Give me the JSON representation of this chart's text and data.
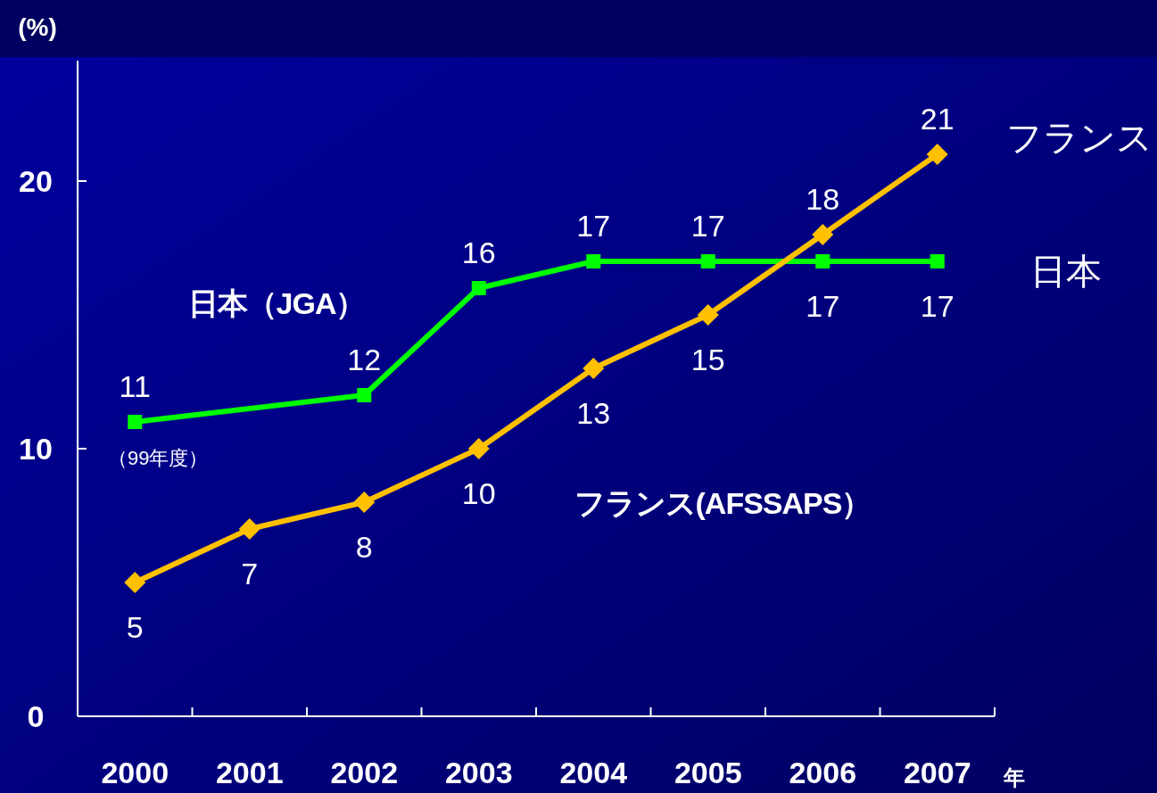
{
  "chart_data": {
    "type": "line",
    "ylabel": "(%)",
    "xlabel": "年",
    "categories": [
      "2000",
      "2001",
      "2002",
      "2003",
      "2004",
      "2005",
      "2006",
      "2007"
    ],
    "series": [
      {
        "name": "日本（JGA）",
        "color": "#00ff00",
        "marker": "square",
        "values": [
          11,
          null,
          12,
          16,
          17,
          17,
          17,
          17
        ]
      },
      {
        "name": "フランス(AFSSAPS）",
        "color": "#ffc000",
        "marker": "diamond",
        "values": [
          5,
          7,
          8,
          10,
          13,
          15,
          18,
          21
        ]
      }
    ],
    "ylim": [
      0,
      24.5
    ],
    "yticks": [
      0,
      10,
      20
    ],
    "data_labels": true,
    "legend": false,
    "grid": false,
    "annotations": [
      {
        "text": "（99年度）",
        "x": "2000",
        "y": 11
      },
      "フランス",
      "日本"
    ]
  }
}
